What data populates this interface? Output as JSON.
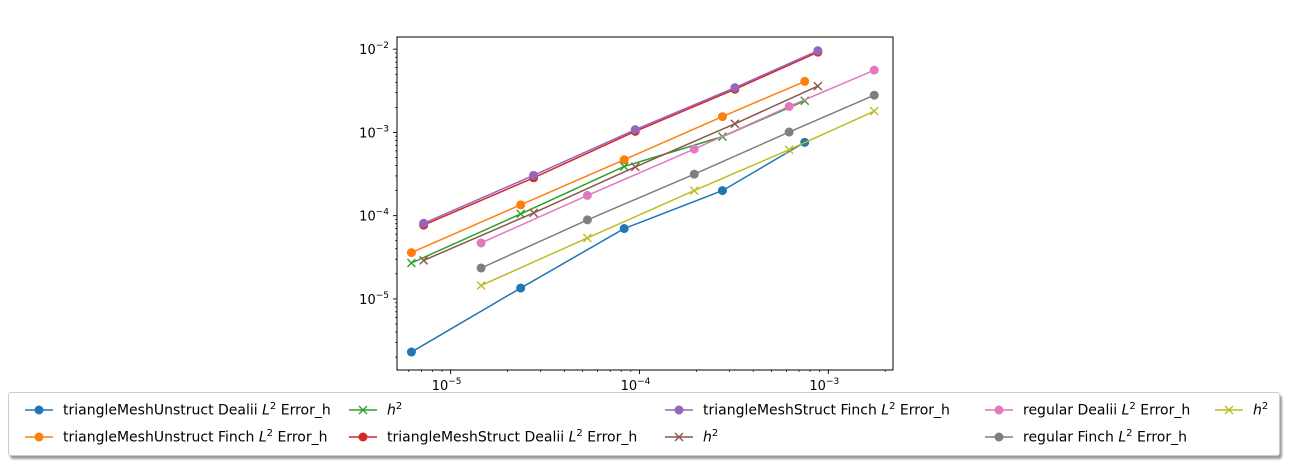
{
  "chart_data": {
    "type": "line",
    "title": "",
    "xlabel": "",
    "ylabel": "",
    "xscale": "log",
    "yscale": "log",
    "xlim": [
      5.2e-06,
      0.0022
    ],
    "ylim": [
      1.4e-06,
      0.014
    ],
    "x_ticks": [
      {
        "value": 1e-05,
        "label": "10",
        "exp": "−5"
      },
      {
        "value": 0.0001,
        "label": "10",
        "exp": "−4"
      },
      {
        "value": 0.001,
        "label": "10",
        "exp": "−3"
      }
    ],
    "y_ticks": [
      {
        "value": 1e-05,
        "label": "10",
        "exp": "−5"
      },
      {
        "value": 0.0001,
        "label": "10",
        "exp": "−4"
      },
      {
        "value": 0.001,
        "label": "10",
        "exp": "−3"
      },
      {
        "value": 0.01,
        "label": "10",
        "exp": "−2"
      }
    ],
    "grid": false,
    "legend_position": "bottom",
    "series": [
      {
        "name": "triangleMeshUnstruct Dealii L² Error_h",
        "label_prefix": "triangleMeshUnstruct Dealii ",
        "label_suffix": " Error_h",
        "math": "L",
        "sup": "2",
        "color": "#1f77b4",
        "marker": "o",
        "x": [
          6.2e-06,
          2.35e-05,
          8.3e-05,
          0.000275,
          0.00075
        ],
        "y": [
          2.3e-06,
          1.35e-05,
          7e-05,
          0.0002,
          0.00076
        ]
      },
      {
        "name": "triangleMeshUnstruct Finch L² Error_h",
        "label_prefix": "triangleMeshUnstruct Finch ",
        "label_suffix": " Error_h",
        "math": "L",
        "sup": "2",
        "color": "#ff7f0e",
        "marker": "o",
        "x": [
          6.2e-06,
          2.35e-05,
          8.3e-05,
          0.000275,
          0.00075
        ],
        "y": [
          3.6e-05,
          0.000135,
          0.00047,
          0.00155,
          0.0041
        ]
      },
      {
        "name": "h²",
        "label_prefix": "",
        "label_suffix": "",
        "math": "h",
        "sup": "2",
        "color": "#2ca02c",
        "marker": "x",
        "x": [
          6.2e-06,
          2.35e-05,
          8.3e-05,
          0.000275,
          0.00075
        ],
        "y": [
          2.7e-05,
          0.000105,
          0.00039,
          0.00089,
          0.0024
        ]
      },
      {
        "name": "triangleMeshStruct Dealii L² Error_h",
        "label_prefix": "triangleMeshStruct Dealii ",
        "label_suffix": " Error_h",
        "math": "L",
        "sup": "2",
        "color": "#d62728",
        "marker": "o",
        "x": [
          7.2e-06,
          2.75e-05,
          9.5e-05,
          0.00032,
          0.00088
        ],
        "y": [
          7.7e-05,
          0.000285,
          0.00103,
          0.0033,
          0.0092
        ]
      },
      {
        "name": "triangleMeshStruct Finch L² Error_h",
        "label_prefix": "triangleMeshStruct Finch ",
        "label_suffix": " Error_h",
        "math": "L",
        "sup": "2",
        "color": "#9467bd",
        "marker": "o",
        "x": [
          7.2e-06,
          2.75e-05,
          9.5e-05,
          0.00032,
          0.00088
        ],
        "y": [
          8.1e-05,
          0.000305,
          0.00108,
          0.00345,
          0.0096
        ]
      },
      {
        "name": "h²",
        "label_prefix": "",
        "label_suffix": "",
        "math": "h",
        "sup": "2",
        "color": "#8c564b",
        "marker": "x",
        "x": [
          7.2e-06,
          2.75e-05,
          9.5e-05,
          0.00032,
          0.00088
        ],
        "y": [
          2.9e-05,
          0.000108,
          0.000385,
          0.00127,
          0.0036
        ]
      },
      {
        "name": "regular Dealii L² Error_h",
        "label_prefix": "regular Dealii ",
        "label_suffix": " Error_h",
        "math": "L",
        "sup": "2",
        "color": "#e377c2",
        "marker": "o",
        "x": [
          1.45e-05,
          5.3e-05,
          0.000195,
          0.00062,
          0.00175
        ],
        "y": [
          4.7e-05,
          0.000175,
          0.00063,
          0.00205,
          0.0056
        ]
      },
      {
        "name": "regular Finch L² Error_h",
        "label_prefix": "regular Finch ",
        "label_suffix": " Error_h",
        "math": "L",
        "sup": "2",
        "color": "#7f7f7f",
        "marker": "o",
        "x": [
          1.45e-05,
          5.3e-05,
          0.000195,
          0.00062,
          0.00175
        ],
        "y": [
          2.35e-05,
          8.9e-05,
          0.000315,
          0.00101,
          0.0028
        ]
      },
      {
        "name": "h²",
        "label_prefix": "",
        "label_suffix": "",
        "math": "h",
        "sup": "2",
        "color": "#bcbd22",
        "marker": "x",
        "x": [
          1.45e-05,
          5.3e-05,
          0.000195,
          0.00062,
          0.00175
        ],
        "y": [
          1.45e-05,
          5.4e-05,
          0.0002,
          0.00062,
          0.0018
        ]
      }
    ]
  }
}
